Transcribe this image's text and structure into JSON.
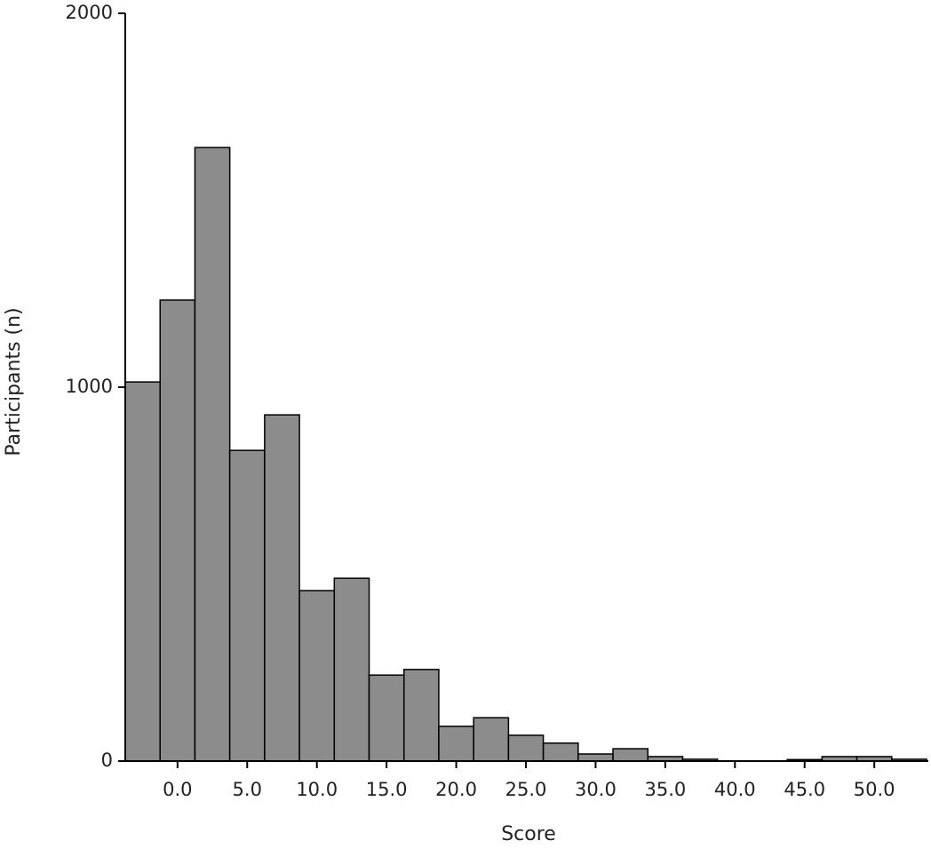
{
  "chart_data": {
    "type": "histogram",
    "x_label": "Score",
    "y_label": "Participants (n)",
    "bins": [
      -3.75,
      -1.25,
      1.25,
      3.75,
      6.25,
      8.75,
      11.25,
      13.75,
      16.25,
      18.75,
      21.25,
      23.75,
      26.25,
      28.75,
      31.25,
      33.75,
      36.25,
      38.75,
      41.25,
      43.75,
      46.25,
      48.75,
      51.25,
      53.75
    ],
    "values": [
      1014,
      1233,
      1641,
      831,
      926,
      456,
      489,
      230,
      245,
      93,
      116,
      69,
      48,
      19,
      33,
      12,
      5,
      0,
      0,
      4,
      12,
      12,
      5
    ],
    "color": "#8c8c8c",
    "xlim": [
      -3.75,
      53.75
    ],
    "ylim": [
      0,
      2000
    ],
    "xticks": [
      {
        "value": 0,
        "label": "0.0"
      },
      {
        "value": 5,
        "label": "5.0"
      },
      {
        "value": 10,
        "label": "10.0"
      },
      {
        "value": 15,
        "label": "15.0"
      },
      {
        "value": 20,
        "label": "20.0"
      },
      {
        "value": 25,
        "label": "25.0"
      },
      {
        "value": 30,
        "label": "30.0"
      },
      {
        "value": 35,
        "label": "35.0"
      },
      {
        "value": 40,
        "label": "40.0"
      },
      {
        "value": 45,
        "label": "45.0"
      },
      {
        "value": 50,
        "label": "50.0"
      }
    ],
    "yticks": [
      0,
      1000,
      2000
    ],
    "grid": false
  }
}
